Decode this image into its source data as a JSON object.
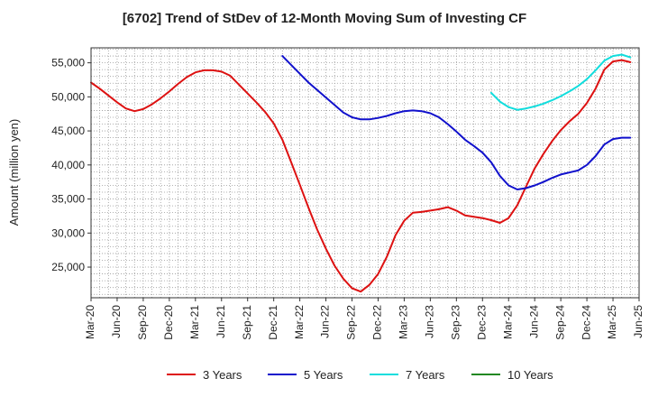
{
  "chart_data": {
    "type": "line",
    "title": "[6702]  Trend of StDev of 12-Month Moving Sum of Investing CF",
    "ylabel": "Amount (million yen)",
    "xlabel": "",
    "ylim": [
      20500,
      57200
    ],
    "yticks": [
      25000,
      30000,
      35000,
      40000,
      45000,
      50000,
      55000
    ],
    "ytick_labels": [
      "25,000",
      "30,000",
      "35,000",
      "40,000",
      "45,000",
      "50,000",
      "55,000"
    ],
    "xlim": [
      "2020-03",
      "2025-06"
    ],
    "xtick_labels": [
      "Mar-20",
      "Jun-20",
      "Sep-20",
      "Dec-20",
      "Mar-21",
      "Jun-21",
      "Sep-21",
      "Dec-21",
      "Mar-22",
      "Jun-22",
      "Sep-22",
      "Dec-22",
      "Mar-23",
      "Jun-23",
      "Sep-23",
      "Dec-23",
      "Mar-24",
      "Jun-24",
      "Sep-24",
      "Dec-24",
      "Mar-25",
      "Jun-25"
    ],
    "grid": true,
    "legend_position": "bottom",
    "series": [
      {
        "name": "3 Years",
        "color": "#dd1111",
        "points": [
          [
            "2020-03",
            52100
          ],
          [
            "2020-04",
            51200
          ],
          [
            "2020-05",
            50200
          ],
          [
            "2020-06",
            49200
          ],
          [
            "2020-07",
            48300
          ],
          [
            "2020-08",
            47900
          ],
          [
            "2020-09",
            48200
          ],
          [
            "2020-10",
            48900
          ],
          [
            "2020-11",
            49800
          ],
          [
            "2020-12",
            50800
          ],
          [
            "2021-01",
            51900
          ],
          [
            "2021-02",
            52900
          ],
          [
            "2021-03",
            53600
          ],
          [
            "2021-04",
            53900
          ],
          [
            "2021-05",
            53900
          ],
          [
            "2021-06",
            53700
          ],
          [
            "2021-07",
            53100
          ],
          [
            "2021-08",
            51800
          ],
          [
            "2021-09",
            50500
          ],
          [
            "2021-10",
            49200
          ],
          [
            "2021-11",
            47800
          ],
          [
            "2021-12",
            46100
          ],
          [
            "2022-01",
            43700
          ],
          [
            "2022-02",
            40400
          ],
          [
            "2022-03",
            37100
          ],
          [
            "2022-04",
            33700
          ],
          [
            "2022-05",
            30500
          ],
          [
            "2022-06",
            27700
          ],
          [
            "2022-07",
            25200
          ],
          [
            "2022-08",
            23300
          ],
          [
            "2022-09",
            21900
          ],
          [
            "2022-10",
            21400
          ],
          [
            "2022-11",
            22400
          ],
          [
            "2022-12",
            24000
          ],
          [
            "2023-01",
            26500
          ],
          [
            "2023-02",
            29700
          ],
          [
            "2023-03",
            31800
          ],
          [
            "2023-04",
            33000
          ],
          [
            "2023-05",
            33100
          ],
          [
            "2023-06",
            33300
          ],
          [
            "2023-07",
            33500
          ],
          [
            "2023-08",
            33800
          ],
          [
            "2023-09",
            33300
          ],
          [
            "2023-10",
            32600
          ],
          [
            "2023-11",
            32400
          ],
          [
            "2023-12",
            32200
          ],
          [
            "2024-01",
            31900
          ],
          [
            "2024-02",
            31500
          ],
          [
            "2024-03",
            32200
          ],
          [
            "2024-04",
            34100
          ],
          [
            "2024-05",
            36800
          ],
          [
            "2024-06",
            39500
          ],
          [
            "2024-07",
            41600
          ],
          [
            "2024-08",
            43500
          ],
          [
            "2024-09",
            45100
          ],
          [
            "2024-10",
            46400
          ],
          [
            "2024-11",
            47500
          ],
          [
            "2024-12",
            49100
          ],
          [
            "2025-01",
            51200
          ],
          [
            "2025-02",
            54000
          ],
          [
            "2025-03",
            55200
          ],
          [
            "2025-04",
            55400
          ],
          [
            "2025-05",
            55100
          ]
        ]
      },
      {
        "name": "5 Years",
        "color": "#1111cc",
        "points": [
          [
            "2022-01",
            56000
          ],
          [
            "2022-02",
            54700
          ],
          [
            "2022-03",
            53400
          ],
          [
            "2022-04",
            52100
          ],
          [
            "2022-05",
            51000
          ],
          [
            "2022-06",
            49900
          ],
          [
            "2022-07",
            48800
          ],
          [
            "2022-08",
            47700
          ],
          [
            "2022-09",
            47000
          ],
          [
            "2022-10",
            46700
          ],
          [
            "2022-11",
            46700
          ],
          [
            "2022-12",
            46900
          ],
          [
            "2023-01",
            47200
          ],
          [
            "2023-02",
            47600
          ],
          [
            "2023-03",
            47900
          ],
          [
            "2023-04",
            48000
          ],
          [
            "2023-05",
            47900
          ],
          [
            "2023-06",
            47600
          ],
          [
            "2023-07",
            47000
          ],
          [
            "2023-08",
            46000
          ],
          [
            "2023-09",
            44900
          ],
          [
            "2023-10",
            43700
          ],
          [
            "2023-11",
            42800
          ],
          [
            "2023-12",
            41800
          ],
          [
            "2024-01",
            40400
          ],
          [
            "2024-02",
            38400
          ],
          [
            "2024-03",
            37000
          ],
          [
            "2024-04",
            36400
          ],
          [
            "2024-05",
            36600
          ],
          [
            "2024-06",
            37000
          ],
          [
            "2024-07",
            37500
          ],
          [
            "2024-08",
            38100
          ],
          [
            "2024-09",
            38600
          ],
          [
            "2024-10",
            38900
          ],
          [
            "2024-11",
            39200
          ],
          [
            "2024-12",
            40000
          ],
          [
            "2025-01",
            41300
          ],
          [
            "2025-02",
            43000
          ],
          [
            "2025-03",
            43800
          ],
          [
            "2025-04",
            44000
          ],
          [
            "2025-05",
            44000
          ]
        ]
      },
      {
        "name": "7 Years",
        "color": "#11dddd",
        "points": [
          [
            "2024-01",
            50600
          ],
          [
            "2024-02",
            49300
          ],
          [
            "2024-03",
            48500
          ],
          [
            "2024-04",
            48100
          ],
          [
            "2024-05",
            48300
          ],
          [
            "2024-06",
            48600
          ],
          [
            "2024-07",
            49000
          ],
          [
            "2024-08",
            49500
          ],
          [
            "2024-09",
            50100
          ],
          [
            "2024-10",
            50800
          ],
          [
            "2024-11",
            51600
          ],
          [
            "2024-12",
            52600
          ],
          [
            "2025-01",
            53900
          ],
          [
            "2025-02",
            55300
          ],
          [
            "2025-03",
            56000
          ],
          [
            "2025-04",
            56200
          ],
          [
            "2025-05",
            55800
          ]
        ]
      },
      {
        "name": "10 Years",
        "color": "#228822",
        "points": []
      }
    ]
  }
}
